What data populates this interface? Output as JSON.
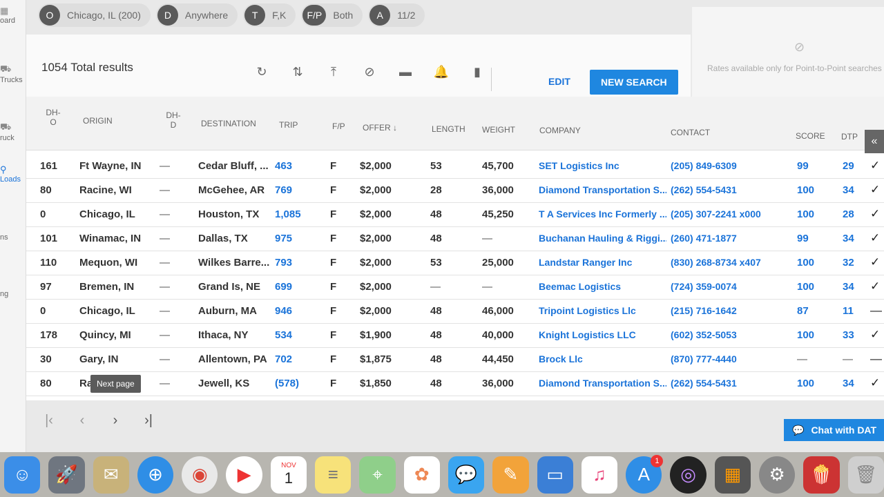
{
  "sidebar": {
    "items": [
      {
        "label": "oard",
        "icon": "dashboard-icon"
      },
      {
        "label": "Trucks",
        "icon": "truck-icon"
      },
      {
        "label": "ruck",
        "icon": "truck-search-icon"
      },
      {
        "label": "Loads",
        "icon": "loads-icon"
      },
      {
        "label": "ns",
        "icon": "menu-icon"
      },
      {
        "label": "ng",
        "icon": "settings-icon"
      }
    ]
  },
  "chips": [
    {
      "avatar": "O",
      "label": "Chicago, IL (200)"
    },
    {
      "avatar": "D",
      "label": "Anywhere"
    },
    {
      "avatar": "T",
      "label": "F,K"
    },
    {
      "avatar": "F/P",
      "label": "Both"
    },
    {
      "avatar": "A",
      "label": "11/2"
    }
  ],
  "results": {
    "total": "1054 Total results"
  },
  "toolbar": {
    "icons": [
      "refresh-icon",
      "sort-icon",
      "move-to-top-icon",
      "hide-icon",
      "compact-view-icon",
      "alert-bell-icon",
      "bookmark-icon"
    ],
    "edit_label": "EDIT",
    "new_search_label": "NEW SEARCH"
  },
  "rates": {
    "message": "Rates available only for Point-to-Point searches"
  },
  "table": {
    "headers": {
      "dho_1": "DH-",
      "dho_2": "O",
      "origin": "ORIGIN",
      "dhd_1": "DH-",
      "dhd_2": "D",
      "destination": "DESTINATION",
      "trip": "TRIP",
      "fp": "F/P",
      "offer": "OFFER ↓",
      "length": "LENGTH",
      "weight": "WEIGHT",
      "company": "COMPANY",
      "contact": "CONTACT",
      "score": "SCORE",
      "dtp": "DTP"
    },
    "rows": [
      {
        "dho": "161",
        "origin": "Ft Wayne, IN",
        "dhd": "—",
        "destination": "Cedar Bluff, ...",
        "trip": "463",
        "fp": "F",
        "offer": "$2,000",
        "length": "53",
        "weight": "45,700",
        "company": "SET Logistics Inc",
        "contact": "(205) 849-6309",
        "score": "99",
        "dtp": "29",
        "factor": "✓"
      },
      {
        "dho": "80",
        "origin": "Racine, WI",
        "dhd": "—",
        "destination": "McGehee, AR",
        "trip": "769",
        "fp": "F",
        "offer": "$2,000",
        "length": "28",
        "weight": "36,000",
        "company": "Diamond Transportation S...",
        "contact": "(262) 554-5431",
        "score": "100",
        "dtp": "34",
        "factor": "✓"
      },
      {
        "dho": "0",
        "origin": "Chicago, IL",
        "dhd": "—",
        "destination": "Houston, TX",
        "trip": "1,085",
        "fp": "F",
        "offer": "$2,000",
        "length": "48",
        "weight": "45,250",
        "company": "T A Services Inc Formerly ...",
        "contact": "(205) 307-2241 x000",
        "score": "100",
        "dtp": "28",
        "factor": "✓"
      },
      {
        "dho": "101",
        "origin": "Winamac, IN",
        "dhd": "—",
        "destination": "Dallas, TX",
        "trip": "975",
        "fp": "F",
        "offer": "$2,000",
        "length": "48",
        "weight": "—",
        "company": "Buchanan Hauling & Riggi...",
        "contact": "(260) 471-1877",
        "score": "99",
        "dtp": "34",
        "factor": "✓"
      },
      {
        "dho": "110",
        "origin": "Mequon, WI",
        "dhd": "—",
        "destination": "Wilkes Barre...",
        "trip": "793",
        "fp": "F",
        "offer": "$2,000",
        "length": "53",
        "weight": "25,000",
        "company": "Landstar Ranger Inc",
        "contact": "(830) 268-8734 x407",
        "score": "100",
        "dtp": "32",
        "factor": "✓"
      },
      {
        "dho": "97",
        "origin": "Bremen, IN",
        "dhd": "—",
        "destination": "Grand Is, NE",
        "trip": "699",
        "fp": "F",
        "offer": "$2,000",
        "length": "—",
        "weight": "—",
        "company": "Beemac Logistics",
        "contact": "(724) 359-0074",
        "score": "100",
        "dtp": "34",
        "factor": "✓"
      },
      {
        "dho": "0",
        "origin": "Chicago, IL",
        "dhd": "—",
        "destination": "Auburn, MA",
        "trip": "946",
        "fp": "F",
        "offer": "$2,000",
        "length": "48",
        "weight": "46,000",
        "company": "Tripoint Logistics Llc",
        "contact": "(215) 716-1642",
        "score": "87",
        "dtp": "11",
        "factor": "—"
      },
      {
        "dho": "178",
        "origin": "Quincy, MI",
        "dhd": "—",
        "destination": "Ithaca, NY",
        "trip": "534",
        "fp": "F",
        "offer": "$1,900",
        "length": "48",
        "weight": "40,000",
        "company": "Knight Logistics LLC",
        "contact": "(602) 352-5053",
        "score": "100",
        "dtp": "33",
        "factor": "✓"
      },
      {
        "dho": "30",
        "origin": "Gary, IN",
        "dhd": "—",
        "destination": "Allentown, PA",
        "trip": "702",
        "fp": "F",
        "offer": "$1,875",
        "length": "48",
        "weight": "44,450",
        "company": "Brock Llc",
        "contact": "(870) 777-4440",
        "score": "—",
        "dtp": "—",
        "factor": "—"
      },
      {
        "dho": "80",
        "origin": "Ra",
        "dhd": "—",
        "destination": "Jewell, KS",
        "trip": "(578)",
        "fp": "F",
        "offer": "$1,850",
        "length": "48",
        "weight": "36,000",
        "company": "Diamond Transportation S...",
        "contact": "(262) 554-5431",
        "score": "100",
        "dtp": "34",
        "factor": "✓"
      }
    ]
  },
  "pager": {
    "tooltip": "Next page",
    "first": "|‹",
    "prev": "‹",
    "next": "›",
    "last": "›|"
  },
  "chat": {
    "label": "Chat with DAT"
  },
  "dock": {
    "calendar_month": "NOV",
    "calendar_day": "1",
    "appstore_badge": "1",
    "apps": [
      "finder-icon",
      "launchpad-icon",
      "mail-icon",
      "safari-icon",
      "chrome-icon",
      "video-icon",
      "calendar-icon",
      "notes-icon",
      "maps-icon",
      "photos-icon",
      "messages-icon",
      "pages-icon",
      "keynote-icon",
      "music-icon",
      "app-store-icon",
      "siri-icon",
      "calculator-icon",
      "system-preferences-icon",
      "popcorn-icon",
      "trash-icon"
    ]
  }
}
